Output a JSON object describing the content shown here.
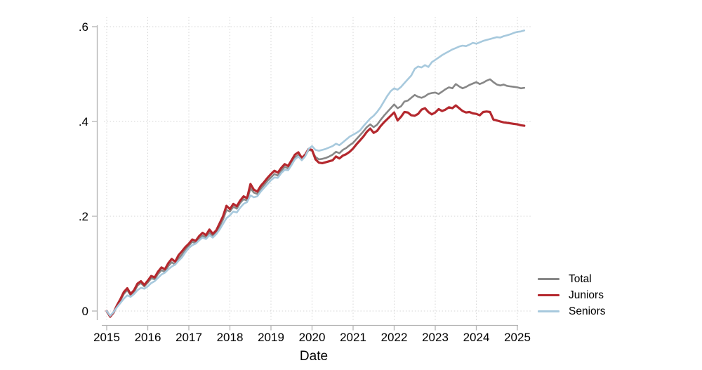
{
  "figure": {
    "background": "#ffffff"
  },
  "chart_data": {
    "type": "line",
    "title": "",
    "xlabel": "Date",
    "ylabel": "",
    "grid": "dotted",
    "legend_position": "right-bottom",
    "xlim": [
      2014.75,
      2025.35
    ],
    "ylim": [
      -0.02,
      0.62
    ],
    "x_ticks": [
      2015,
      2016,
      2017,
      2018,
      2019,
      2020,
      2021,
      2022,
      2023,
      2024,
      2025
    ],
    "x_tick_labels": [
      "2015",
      "2016",
      "2017",
      "2018",
      "2019",
      "2020",
      "2021",
      "2022",
      "2023",
      "2024",
      "2025"
    ],
    "y_ticks": [
      0,
      0.2,
      0.4,
      0.6
    ],
    "y_tick_labels": [
      "0",
      ".2",
      ".4",
      ".6"
    ],
    "colors": {
      "axis": "#b4b4b4",
      "grid": "#d4d4d4",
      "text": "#000000"
    },
    "x_sampling": {
      "start_year": 2015,
      "start_month": 1,
      "points_per_year": 12,
      "count": 123
    },
    "series": [
      {
        "name": "Total",
        "color": "#878787",
        "width": 2.6,
        "values": [
          0.0,
          -0.012,
          -0.004,
          0.01,
          0.022,
          0.036,
          0.044,
          0.033,
          0.04,
          0.054,
          0.059,
          0.052,
          0.06,
          0.069,
          0.067,
          0.078,
          0.086,
          0.083,
          0.095,
          0.103,
          0.098,
          0.111,
          0.119,
          0.129,
          0.138,
          0.146,
          0.143,
          0.152,
          0.159,
          0.155,
          0.166,
          0.158,
          0.165,
          0.179,
          0.193,
          0.213,
          0.21,
          0.22,
          0.216,
          0.228,
          0.236,
          0.233,
          0.259,
          0.25,
          0.247,
          0.258,
          0.266,
          0.275,
          0.282,
          0.289,
          0.286,
          0.296,
          0.304,
          0.301,
          0.312,
          0.324,
          0.329,
          0.32,
          0.327,
          0.34,
          0.338,
          0.325,
          0.32,
          0.321,
          0.323,
          0.326,
          0.33,
          0.336,
          0.333,
          0.34,
          0.344,
          0.35,
          0.355,
          0.363,
          0.371,
          0.379,
          0.388,
          0.394,
          0.388,
          0.393,
          0.403,
          0.412,
          0.42,
          0.428,
          0.436,
          0.428,
          0.432,
          0.442,
          0.444,
          0.45,
          0.456,
          0.452,
          0.45,
          0.453,
          0.458,
          0.46,
          0.461,
          0.458,
          0.463,
          0.468,
          0.472,
          0.47,
          0.479,
          0.474,
          0.47,
          0.473,
          0.477,
          0.48,
          0.483,
          0.479,
          0.482,
          0.486,
          0.489,
          0.483,
          0.478,
          0.476,
          0.478,
          0.475,
          0.474,
          0.473,
          0.472,
          0.47,
          0.471
        ]
      },
      {
        "name": "Juniors",
        "color": "#b4282e",
        "width": 3.2,
        "values": [
          0.0,
          -0.012,
          -0.003,
          0.012,
          0.025,
          0.04,
          0.048,
          0.036,
          0.044,
          0.058,
          0.063,
          0.055,
          0.064,
          0.074,
          0.071,
          0.083,
          0.092,
          0.088,
          0.101,
          0.11,
          0.104,
          0.118,
          0.126,
          0.135,
          0.142,
          0.151,
          0.148,
          0.158,
          0.165,
          0.16,
          0.172,
          0.163,
          0.17,
          0.185,
          0.2,
          0.222,
          0.215,
          0.226,
          0.221,
          0.233,
          0.242,
          0.238,
          0.268,
          0.256,
          0.252,
          0.264,
          0.272,
          0.281,
          0.289,
          0.296,
          0.292,
          0.302,
          0.31,
          0.306,
          0.318,
          0.33,
          0.335,
          0.323,
          0.33,
          0.342,
          0.34,
          0.32,
          0.313,
          0.312,
          0.314,
          0.316,
          0.318,
          0.326,
          0.322,
          0.328,
          0.331,
          0.336,
          0.343,
          0.352,
          0.36,
          0.368,
          0.378,
          0.385,
          0.376,
          0.38,
          0.39,
          0.398,
          0.405,
          0.412,
          0.419,
          0.402,
          0.41,
          0.42,
          0.419,
          0.413,
          0.412,
          0.416,
          0.425,
          0.428,
          0.42,
          0.415,
          0.419,
          0.426,
          0.422,
          0.425,
          0.43,
          0.428,
          0.434,
          0.428,
          0.422,
          0.419,
          0.42,
          0.417,
          0.416,
          0.413,
          0.42,
          0.421,
          0.42,
          0.404,
          0.402,
          0.4,
          0.398,
          0.397,
          0.396,
          0.395,
          0.394,
          0.392,
          0.391
        ]
      },
      {
        "name": "Seniors",
        "color": "#a7c9dd",
        "width": 2.6,
        "values": [
          0.0,
          -0.01,
          -0.002,
          0.008,
          0.017,
          0.026,
          0.033,
          0.03,
          0.036,
          0.044,
          0.049,
          0.047,
          0.052,
          0.059,
          0.063,
          0.07,
          0.077,
          0.081,
          0.088,
          0.094,
          0.098,
          0.106,
          0.113,
          0.124,
          0.133,
          0.139,
          0.142,
          0.149,
          0.155,
          0.152,
          0.16,
          0.155,
          0.162,
          0.172,
          0.184,
          0.196,
          0.202,
          0.21,
          0.208,
          0.218,
          0.226,
          0.23,
          0.244,
          0.24,
          0.242,
          0.252,
          0.26,
          0.268,
          0.276,
          0.282,
          0.281,
          0.291,
          0.298,
          0.297,
          0.308,
          0.32,
          0.326,
          0.318,
          0.326,
          0.342,
          0.348,
          0.34,
          0.338,
          0.34,
          0.342,
          0.345,
          0.348,
          0.353,
          0.35,
          0.356,
          0.362,
          0.368,
          0.372,
          0.376,
          0.381,
          0.39,
          0.398,
          0.406,
          0.412,
          0.42,
          0.43,
          0.442,
          0.454,
          0.464,
          0.47,
          0.467,
          0.473,
          0.481,
          0.489,
          0.497,
          0.511,
          0.516,
          0.514,
          0.519,
          0.515,
          0.525,
          0.53,
          0.535,
          0.54,
          0.544,
          0.548,
          0.552,
          0.555,
          0.558,
          0.56,
          0.559,
          0.562,
          0.566,
          0.564,
          0.567,
          0.57,
          0.572,
          0.574,
          0.576,
          0.578,
          0.577,
          0.58,
          0.582,
          0.584,
          0.587,
          0.589,
          0.59,
          0.592
        ]
      }
    ]
  }
}
